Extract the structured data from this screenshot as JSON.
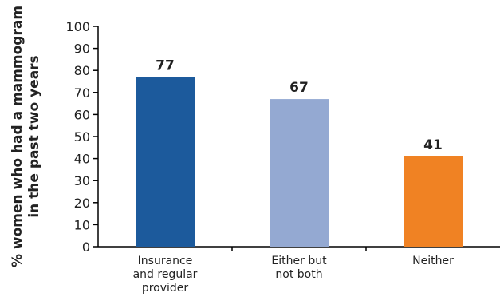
{
  "chart_data": {
    "type": "bar",
    "categories": [
      [
        "Insurance",
        "and regular",
        "provider"
      ],
      [
        "Either but",
        "not both"
      ],
      [
        "Neither"
      ]
    ],
    "values": [
      77,
      67,
      41
    ],
    "data_labels": [
      "77",
      "67",
      "41"
    ],
    "colors": [
      "#1c5a9c",
      "#94a9d2",
      "#f08223"
    ],
    "ylabel": [
      "% women who had a mammogram",
      "in the past two years"
    ],
    "ylim": [
      0,
      100
    ],
    "yticks": [
      "0",
      "10",
      "20",
      "30",
      "40",
      "50",
      "60",
      "70",
      "80",
      "90",
      "100"
    ],
    "grid": false,
    "legend": "none"
  }
}
